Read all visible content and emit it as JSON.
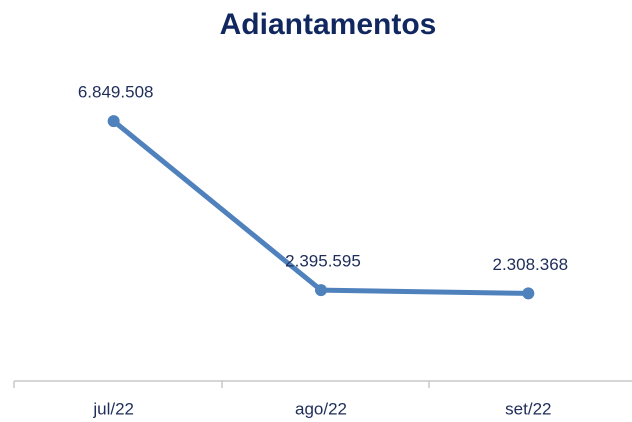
{
  "chart_data": {
    "type": "line",
    "title": "Adiantamentos",
    "categories": [
      "jul/22",
      "ago/22",
      "set/22"
    ],
    "series": [
      {
        "name": "Adiantamentos",
        "color": "#4f81bd",
        "values": [
          6849508,
          2395595,
          2308368
        ],
        "value_labels": [
          "6.849.508",
          "2.395.595",
          "2.308.368"
        ]
      }
    ],
    "ylim": [
      0,
      8000000
    ]
  }
}
